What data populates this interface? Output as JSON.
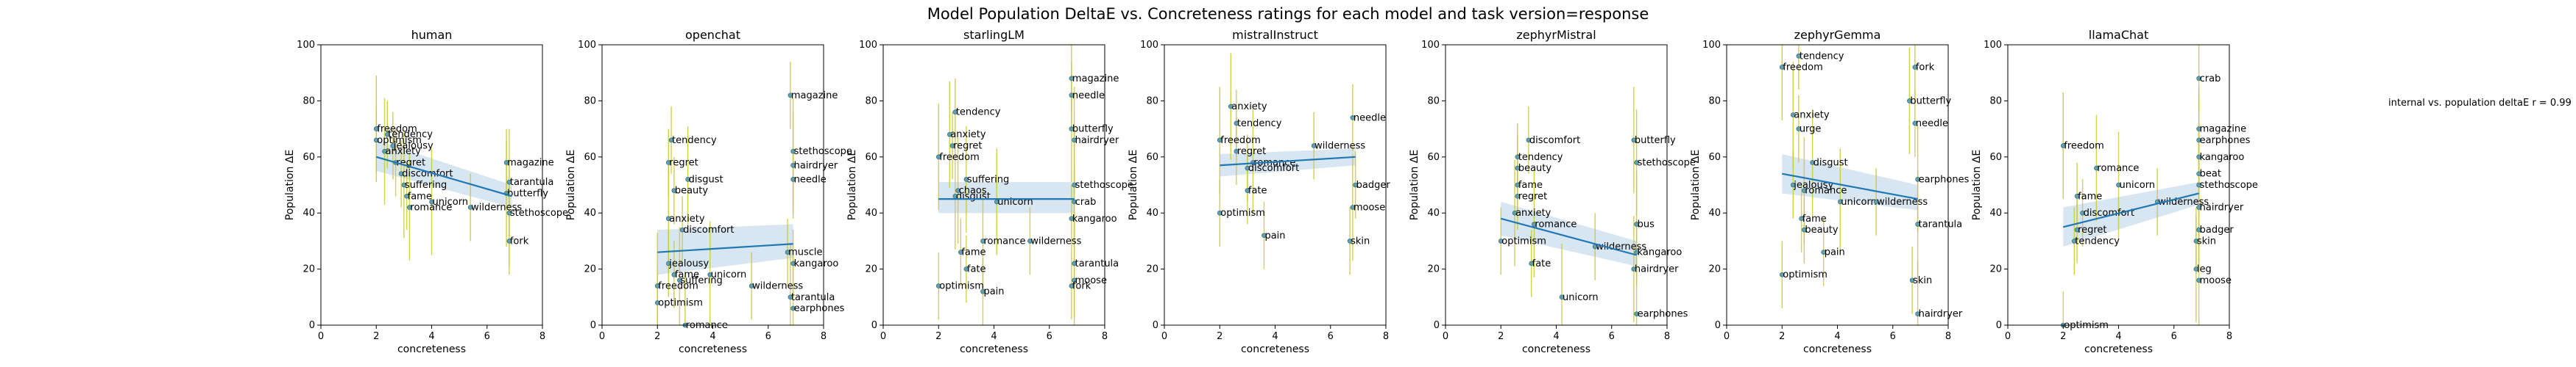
{
  "figure": {
    "title": "Model Population DeltaE vs. Concreteness ratings for each model and task version=response",
    "side_note": "internal vs. population deltaE r = 0.99"
  },
  "chart_data": [
    {
      "type": "scatter",
      "title": "human",
      "xlabel": "concreteness",
      "ylabel": "Population ΔE",
      "xlim": [
        0,
        8
      ],
      "ylim": [
        0,
        100
      ],
      "xticks": [
        0,
        2,
        4,
        6,
        8
      ],
      "yticks": [
        0,
        20,
        40,
        60,
        80,
        100
      ],
      "regression": {
        "x": [
          2.0,
          6.9
        ],
        "y": [
          60,
          46
        ],
        "ci_lo": [
          55,
          42
        ],
        "ci_hi": [
          66,
          50
        ]
      },
      "points": [
        {
          "label": "freedom",
          "x": 2.0,
          "y": 70
        },
        {
          "label": "tendency",
          "x": 2.4,
          "y": 68
        },
        {
          "label": "jealousy",
          "x": 2.6,
          "y": 64
        },
        {
          "label": "anxiety",
          "x": 2.3,
          "y": 62
        },
        {
          "label": "optimism",
          "x": 2.0,
          "y": 66
        },
        {
          "label": "regret",
          "x": 2.7,
          "y": 58
        },
        {
          "label": "discomfort",
          "x": 2.9,
          "y": 54
        },
        {
          "label": "suffering",
          "x": 3.0,
          "y": 50
        },
        {
          "label": "fame",
          "x": 3.1,
          "y": 46
        },
        {
          "label": "romance",
          "x": 3.2,
          "y": 42
        },
        {
          "label": "unicorn",
          "x": 4.0,
          "y": 44
        },
        {
          "label": "wilderness",
          "x": 5.4,
          "y": 42
        },
        {
          "label": "magazine",
          "x": 6.7,
          "y": 58
        },
        {
          "label": "tarantula",
          "x": 6.8,
          "y": 51
        },
        {
          "label": "butterfly",
          "x": 6.7,
          "y": 47
        },
        {
          "label": "stethoscope",
          "x": 6.8,
          "y": 40
        },
        {
          "label": "fork",
          "x": 6.8,
          "y": 30
        }
      ]
    },
    {
      "type": "scatter",
      "title": "openchat",
      "xlabel": "concreteness",
      "ylabel": "Population ΔE",
      "xlim": [
        0,
        8
      ],
      "ylim": [
        0,
        100
      ],
      "xticks": [
        0,
        2,
        4,
        6,
        8
      ],
      "yticks": [
        0,
        20,
        40,
        60,
        80,
        100
      ],
      "regression": {
        "x": [
          2.0,
          6.9
        ],
        "y": [
          26,
          29
        ],
        "ci_lo": [
          18,
          24
        ],
        "ci_hi": [
          34,
          36
        ]
      },
      "points": [
        {
          "label": "tendency",
          "x": 2.5,
          "y": 66
        },
        {
          "label": "regret",
          "x": 2.4,
          "y": 58
        },
        {
          "label": "disgust",
          "x": 3.1,
          "y": 52
        },
        {
          "label": "beauty",
          "x": 2.6,
          "y": 48
        },
        {
          "label": "anxiety",
          "x": 2.4,
          "y": 38
        },
        {
          "label": "discomfort",
          "x": 2.9,
          "y": 34
        },
        {
          "label": "jealousy",
          "x": 2.4,
          "y": 22
        },
        {
          "label": "fame",
          "x": 2.6,
          "y": 18
        },
        {
          "label": "freedom",
          "x": 2.0,
          "y": 14
        },
        {
          "label": "suffering",
          "x": 2.8,
          "y": 16
        },
        {
          "label": "unicorn",
          "x": 3.9,
          "y": 18
        },
        {
          "label": "wilderness",
          "x": 5.4,
          "y": 14
        },
        {
          "label": "magazine",
          "x": 6.8,
          "y": 82
        },
        {
          "label": "stethoscope",
          "x": 6.9,
          "y": 62
        },
        {
          "label": "hairdryer",
          "x": 6.9,
          "y": 57
        },
        {
          "label": "needle",
          "x": 6.9,
          "y": 52
        },
        {
          "label": "muscle",
          "x": 6.7,
          "y": 26
        },
        {
          "label": "kangaroo",
          "x": 6.9,
          "y": 22
        },
        {
          "label": "tarantula",
          "x": 6.8,
          "y": 10
        },
        {
          "label": "earphones",
          "x": 6.9,
          "y": 6
        },
        {
          "label": "optimism",
          "x": 2.0,
          "y": 8
        },
        {
          "label": "romance",
          "x": 3.0,
          "y": 0
        }
      ]
    },
    {
      "type": "scatter",
      "title": "starlingLM",
      "xlabel": "concreteness",
      "ylabel": "Population ΔE",
      "xlim": [
        0,
        8
      ],
      "ylim": [
        0,
        100
      ],
      "xticks": [
        0,
        2,
        4,
        6,
        8
      ],
      "yticks": [
        0,
        20,
        40,
        60,
        80,
        100
      ],
      "regression": {
        "x": [
          2.0,
          6.9
        ],
        "y": [
          45,
          45
        ],
        "ci_lo": [
          40,
          40
        ],
        "ci_hi": [
          51,
          51
        ]
      },
      "points": [
        {
          "label": "tendency",
          "x": 2.6,
          "y": 76
        },
        {
          "label": "anxiety",
          "x": 2.4,
          "y": 68
        },
        {
          "label": "regret",
          "x": 2.5,
          "y": 64
        },
        {
          "label": "freedom",
          "x": 2.0,
          "y": 60
        },
        {
          "label": "suffering",
          "x": 3.0,
          "y": 52
        },
        {
          "label": "chaos",
          "x": 2.7,
          "y": 48
        },
        {
          "label": "disgust",
          "x": 2.6,
          "y": 46
        },
        {
          "label": "unicorn",
          "x": 4.1,
          "y": 44
        },
        {
          "label": "fame",
          "x": 2.8,
          "y": 26
        },
        {
          "label": "fate",
          "x": 3.0,
          "y": 20
        },
        {
          "label": "romance",
          "x": 3.6,
          "y": 30
        },
        {
          "label": "wilderness",
          "x": 5.3,
          "y": 30
        },
        {
          "label": "optimism",
          "x": 2.0,
          "y": 14
        },
        {
          "label": "pain",
          "x": 3.6,
          "y": 12
        },
        {
          "label": "magazine",
          "x": 6.8,
          "y": 88
        },
        {
          "label": "needle",
          "x": 6.8,
          "y": 82
        },
        {
          "label": "butterfly",
          "x": 6.8,
          "y": 70
        },
        {
          "label": "hairdryer",
          "x": 6.9,
          "y": 66
        },
        {
          "label": "stethoscope",
          "x": 6.9,
          "y": 50
        },
        {
          "label": "crab",
          "x": 6.9,
          "y": 44
        },
        {
          "label": "kangaroo",
          "x": 6.8,
          "y": 38
        },
        {
          "label": "tarantula",
          "x": 6.9,
          "y": 22
        },
        {
          "label": "moose",
          "x": 6.9,
          "y": 16
        },
        {
          "label": "fork",
          "x": 6.8,
          "y": 14
        }
      ]
    },
    {
      "type": "scatter",
      "title": "mistralInstruct",
      "xlabel": "concreteness",
      "ylabel": "Population ΔE",
      "xlim": [
        0,
        8
      ],
      "ylim": [
        0,
        100
      ],
      "xticks": [
        0,
        2,
        4,
        6,
        8
      ],
      "yticks": [
        0,
        20,
        40,
        60,
        80,
        100
      ],
      "regression": {
        "x": [
          2.0,
          6.9
        ],
        "y": [
          57,
          60
        ],
        "ci_lo": [
          53,
          57
        ],
        "ci_hi": [
          61,
          63
        ]
      },
      "points": [
        {
          "label": "anxiety",
          "x": 2.4,
          "y": 78
        },
        {
          "label": "tendency",
          "x": 2.6,
          "y": 72
        },
        {
          "label": "freedom",
          "x": 2.0,
          "y": 66
        },
        {
          "label": "regret",
          "x": 2.6,
          "y": 62
        },
        {
          "label": "romance",
          "x": 3.2,
          "y": 58
        },
        {
          "label": "discomfort",
          "x": 3.0,
          "y": 56
        },
        {
          "label": "fate",
          "x": 3.0,
          "y": 48
        },
        {
          "label": "wilderness",
          "x": 5.4,
          "y": 64
        },
        {
          "label": "optimism",
          "x": 2.0,
          "y": 40
        },
        {
          "label": "pain",
          "x": 3.6,
          "y": 32
        },
        {
          "label": "needle",
          "x": 6.8,
          "y": 74
        },
        {
          "label": "badger",
          "x": 6.9,
          "y": 50
        },
        {
          "label": "moose",
          "x": 6.8,
          "y": 42
        },
        {
          "label": "skin",
          "x": 6.7,
          "y": 30
        }
      ]
    },
    {
      "type": "scatter",
      "title": "zephyrMistral",
      "xlabel": "concreteness",
      "ylabel": "Population ΔE",
      "xlim": [
        0,
        8
      ],
      "ylim": [
        0,
        100
      ],
      "xticks": [
        0,
        2,
        4,
        6,
        8
      ],
      "yticks": [
        0,
        20,
        40,
        60,
        80,
        100
      ],
      "regression": {
        "x": [
          2.0,
          6.9
        ],
        "y": [
          38,
          25
        ],
        "ci_lo": [
          32,
          21
        ],
        "ci_hi": [
          44,
          30
        ]
      },
      "points": [
        {
          "label": "discomfort",
          "x": 3.0,
          "y": 66
        },
        {
          "label": "tendency",
          "x": 2.6,
          "y": 60
        },
        {
          "label": "beauty",
          "x": 2.6,
          "y": 56
        },
        {
          "label": "fame",
          "x": 2.6,
          "y": 50
        },
        {
          "label": "regret",
          "x": 2.6,
          "y": 46
        },
        {
          "label": "anxiety",
          "x": 2.5,
          "y": 40
        },
        {
          "label": "romance",
          "x": 3.2,
          "y": 36
        },
        {
          "label": "optimism",
          "x": 2.0,
          "y": 30
        },
        {
          "label": "fate",
          "x": 3.1,
          "y": 22
        },
        {
          "label": "unicorn",
          "x": 4.2,
          "y": 10
        },
        {
          "label": "wilderness",
          "x": 5.4,
          "y": 28
        },
        {
          "label": "butterfly",
          "x": 6.8,
          "y": 66
        },
        {
          "label": "stethoscope",
          "x": 6.9,
          "y": 58
        },
        {
          "label": "bus",
          "x": 6.9,
          "y": 36
        },
        {
          "label": "kangaroo",
          "x": 6.9,
          "y": 26
        },
        {
          "label": "hairdryer",
          "x": 6.8,
          "y": 20
        },
        {
          "label": "earphones",
          "x": 6.9,
          "y": 4
        }
      ]
    },
    {
      "type": "scatter",
      "title": "zephyrGemma",
      "xlabel": "concreteness",
      "ylabel": "Population ΔE",
      "xlim": [
        0,
        8
      ],
      "ylim": [
        0,
        100
      ],
      "xticks": [
        0,
        2,
        4,
        6,
        8
      ],
      "yticks": [
        0,
        20,
        40,
        60,
        80,
        100
      ],
      "regression": {
        "x": [
          2.0,
          6.9
        ],
        "y": [
          54,
          45
        ],
        "ci_lo": [
          47,
          41
        ],
        "ci_hi": [
          61,
          50
        ]
      },
      "points": [
        {
          "label": "tendency",
          "x": 2.6,
          "y": 96
        },
        {
          "label": "freedom",
          "x": 2.0,
          "y": 92
        },
        {
          "label": "anxiety",
          "x": 2.4,
          "y": 75
        },
        {
          "label": "urge",
          "x": 2.6,
          "y": 70
        },
        {
          "label": "disgust",
          "x": 3.1,
          "y": 58
        },
        {
          "label": "jealousy",
          "x": 2.4,
          "y": 50
        },
        {
          "label": "romance",
          "x": 2.8,
          "y": 48
        },
        {
          "label": "unicorn",
          "x": 4.1,
          "y": 44
        },
        {
          "label": "wilderness",
          "x": 5.4,
          "y": 44
        },
        {
          "label": "fame",
          "x": 2.7,
          "y": 38
        },
        {
          "label": "beauty",
          "x": 2.8,
          "y": 34
        },
        {
          "label": "pain",
          "x": 3.5,
          "y": 26
        },
        {
          "label": "optimism",
          "x": 2.0,
          "y": 18
        },
        {
          "label": "fork",
          "x": 6.8,
          "y": 92
        },
        {
          "label": "butterfly",
          "x": 6.6,
          "y": 80
        },
        {
          "label": "needle",
          "x": 6.8,
          "y": 72
        },
        {
          "label": "earphones",
          "x": 6.9,
          "y": 52
        },
        {
          "label": "tarantula",
          "x": 6.9,
          "y": 36
        },
        {
          "label": "skin",
          "x": 6.7,
          "y": 16
        },
        {
          "label": "hairdryer",
          "x": 6.9,
          "y": 4
        }
      ]
    },
    {
      "type": "scatter",
      "title": "llamaChat",
      "xlabel": "concreteness",
      "ylabel": "Population ΔE",
      "xlim": [
        0,
        8
      ],
      "ylim": [
        0,
        100
      ],
      "xticks": [
        0,
        2,
        4,
        6,
        8
      ],
      "yticks": [
        0,
        20,
        40,
        60,
        80,
        100
      ],
      "regression": {
        "x": [
          2.0,
          6.9
        ],
        "y": [
          35,
          47
        ],
        "ci_lo": [
          28,
          43
        ],
        "ci_hi": [
          42,
          51
        ]
      },
      "points": [
        {
          "label": "crab",
          "x": 6.9,
          "y": 88
        },
        {
          "label": "freedom",
          "x": 2.0,
          "y": 64
        },
        {
          "label": "romance",
          "x": 3.2,
          "y": 56
        },
        {
          "label": "unicorn",
          "x": 4.0,
          "y": 50
        },
        {
          "label": "fame",
          "x": 2.5,
          "y": 46
        },
        {
          "label": "discomfort",
          "x": 2.7,
          "y": 40
        },
        {
          "label": "regret",
          "x": 2.5,
          "y": 34
        },
        {
          "label": "tendency",
          "x": 2.4,
          "y": 30
        },
        {
          "label": "wilderness",
          "x": 5.4,
          "y": 44
        },
        {
          "label": "magazine",
          "x": 6.9,
          "y": 70
        },
        {
          "label": "earphones",
          "x": 6.9,
          "y": 66
        },
        {
          "label": "kangaroo",
          "x": 6.9,
          "y": 60
        },
        {
          "label": "beat",
          "x": 6.9,
          "y": 54
        },
        {
          "label": "stethoscope",
          "x": 6.9,
          "y": 50
        },
        {
          "label": "hairdryer",
          "x": 6.9,
          "y": 42
        },
        {
          "label": "badger",
          "x": 6.9,
          "y": 34
        },
        {
          "label": "skin",
          "x": 6.8,
          "y": 30
        },
        {
          "label": "leg",
          "x": 6.8,
          "y": 20
        },
        {
          "label": "moose",
          "x": 6.9,
          "y": 16
        },
        {
          "label": "optimism",
          "x": 2.0,
          "y": 0
        }
      ]
    }
  ]
}
